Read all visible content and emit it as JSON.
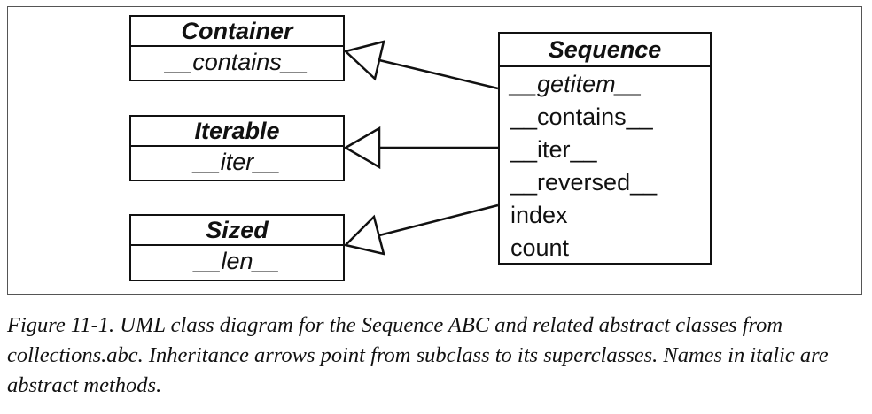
{
  "diagram": {
    "classes": {
      "container": {
        "name": "Container",
        "members": [
          {
            "text": "__contains__",
            "abstract": true
          }
        ]
      },
      "iterable": {
        "name": "Iterable",
        "members": [
          {
            "text": "__iter__",
            "abstract": true
          }
        ]
      },
      "sized": {
        "name": "Sized",
        "members": [
          {
            "text": "__len__",
            "abstract": true
          }
        ]
      },
      "sequence": {
        "name": "Sequence",
        "members": [
          {
            "text": "__getitem__",
            "abstract": true
          },
          {
            "text": "__contains__",
            "abstract": false
          },
          {
            "text": "__iter__",
            "abstract": false
          },
          {
            "text": "__reversed__",
            "abstract": false
          },
          {
            "text": "index",
            "abstract": false
          },
          {
            "text": "count",
            "abstract": false
          }
        ]
      }
    },
    "inheritance": [
      {
        "from": "Sequence",
        "to": "Container"
      },
      {
        "from": "Sequence",
        "to": "Iterable"
      },
      {
        "from": "Sequence",
        "to": "Sized"
      }
    ]
  },
  "caption": "Figure 11-1. UML class diagram for the Sequence ABC and related abstract classes from collections.abc. Inheritance arrows point from subclass to its superclasses. Names in italic are abstract methods."
}
